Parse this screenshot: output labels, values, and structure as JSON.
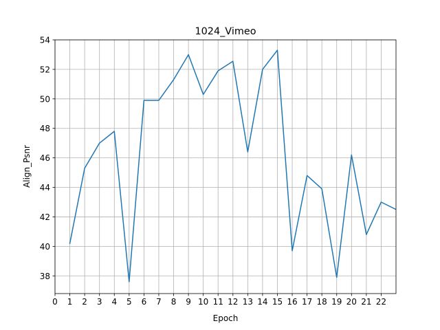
{
  "chart_data": {
    "type": "line",
    "title": "1024_Vimeo",
    "xlabel": "Epoch",
    "ylabel": "Align_Psnr",
    "xlim": [
      0,
      23
    ],
    "ylim": [
      36.8,
      54
    ],
    "grid": true,
    "x_ticks": [
      0,
      1,
      2,
      3,
      4,
      5,
      6,
      7,
      8,
      9,
      10,
      11,
      12,
      13,
      14,
      15,
      16,
      17,
      18,
      19,
      20,
      21,
      22
    ],
    "y_ticks": [
      38,
      40,
      42,
      44,
      46,
      48,
      50,
      52,
      54
    ],
    "series": [
      {
        "color": "#1f77b4",
        "x": [
          1,
          2,
          3,
          4,
          5,
          6,
          7,
          8,
          9,
          10,
          11,
          12,
          13,
          14,
          15,
          16,
          17,
          18,
          19,
          20,
          21,
          22,
          23
        ],
        "values": [
          40.2,
          45.3,
          47.0,
          47.8,
          37.6,
          49.9,
          49.9,
          51.3,
          53.0,
          50.3,
          51.9,
          52.55,
          46.4,
          52.0,
          53.3,
          39.7,
          44.8,
          43.9,
          37.9,
          46.2,
          40.8,
          43.0,
          42.5
        ]
      }
    ]
  }
}
